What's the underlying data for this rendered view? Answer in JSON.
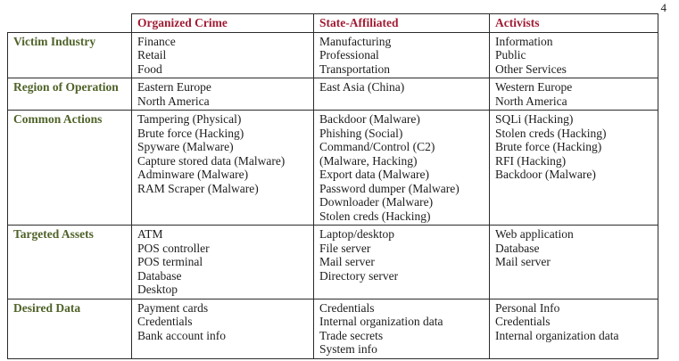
{
  "page": {
    "number": "4"
  },
  "colors": {
    "header_text": "#A01B33",
    "row_label_text": "#4F6228",
    "border": "#2b2b2b",
    "body_text": "#1c1c1c",
    "page_bg": "#ffffff"
  },
  "table": {
    "headers": [
      "",
      "Organized Crime",
      "State-Affiliated",
      "Activists"
    ],
    "rows": [
      {
        "label": "Victim Industry",
        "cells": [
          [
            "Finance",
            "Retail",
            "Food"
          ],
          [
            "Manufacturing",
            "Professional",
            "Transportation"
          ],
          [
            "Information",
            "Public",
            "Other Services"
          ]
        ]
      },
      {
        "label": "Region of Operation",
        "cells": [
          [
            "Eastern Europe",
            "North America"
          ],
          [
            "East Asia (China)"
          ],
          [
            "Western Europe",
            "North America"
          ]
        ]
      },
      {
        "label": "Common Actions",
        "cells": [
          [
            "Tampering (Physical)",
            "Brute force (Hacking)",
            "Spyware (Malware)",
            "Capture stored data (Malware)",
            "Adminware (Malware)",
            "RAM Scraper (Malware)"
          ],
          [
            "Backdoor (Malware)",
            "Phishing (Social)",
            "Command/Control (C2)",
            "(Malware, Hacking)",
            "Export data (Malware)",
            "Password dumper (Malware)",
            "Downloader (Malware)",
            "Stolen creds (Hacking)"
          ],
          [
            "SQLi (Hacking)",
            "Stolen creds (Hacking)",
            "Brute force (Hacking)",
            "RFI (Hacking)",
            "Backdoor (Malware)"
          ]
        ]
      },
      {
        "label": "Targeted Assets",
        "cells": [
          [
            "ATM",
            "POS controller",
            "POS terminal",
            "Database",
            "Desktop"
          ],
          [
            "Laptop/desktop",
            "File server",
            "Mail server",
            "Directory server"
          ],
          [
            "Web application",
            "Database",
            "Mail server"
          ]
        ]
      },
      {
        "label": "Desired Data",
        "cells": [
          [
            "Payment cards",
            "Credentials",
            "Bank account info"
          ],
          [
            "Credentials",
            "Internal organization data",
            "Trade secrets",
            "System info"
          ],
          [
            "Personal Info",
            "Credentials",
            "Internal organization data"
          ]
        ]
      }
    ]
  }
}
